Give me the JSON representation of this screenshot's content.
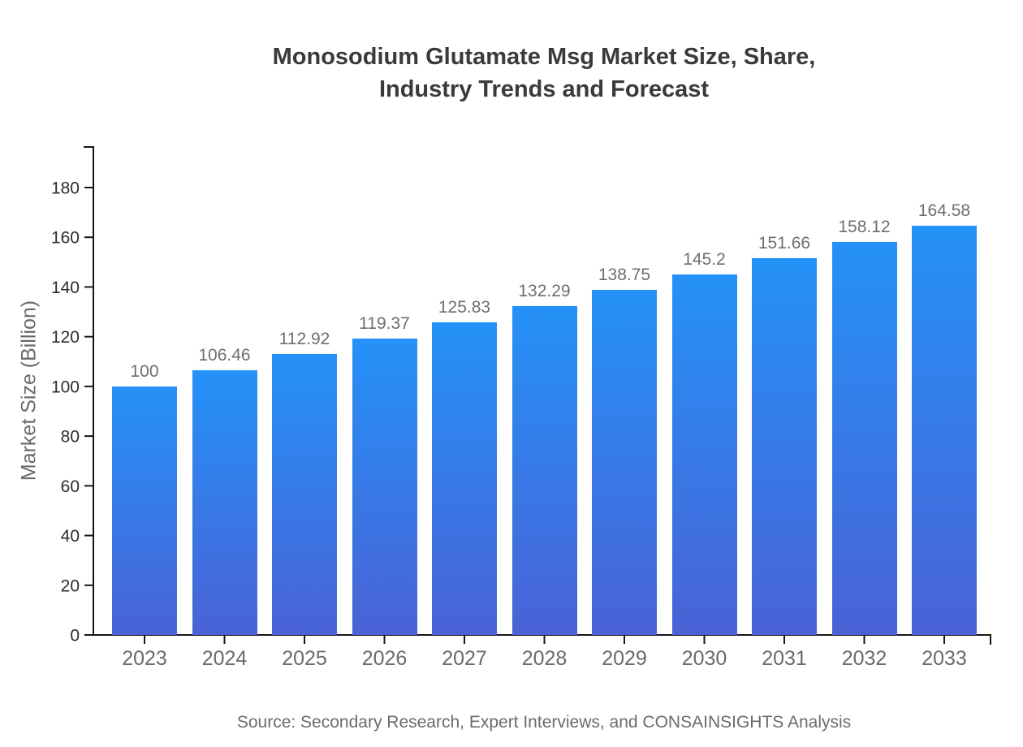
{
  "title": {
    "line1": "Monosodium Glutamate Msg Market Size, Share,",
    "line2": "Industry Trends and Forecast"
  },
  "source": "Source: Secondary Research, Expert Interviews, and CONSAINSIGHTS Analysis",
  "chart_data": {
    "type": "bar",
    "title": "Monosodium Glutamate Msg Market Size, Share, Industry Trends and Forecast",
    "categories": [
      "2023",
      "2024",
      "2025",
      "2026",
      "2027",
      "2028",
      "2029",
      "2030",
      "2031",
      "2032",
      "2033"
    ],
    "values": [
      100,
      106.46,
      112.92,
      119.37,
      125.83,
      132.29,
      138.75,
      145.2,
      151.66,
      158.12,
      164.58
    ],
    "value_labels": [
      "100",
      "106.46",
      "112.92",
      "119.37",
      "125.83",
      "132.29",
      "138.75",
      "145.2",
      "151.66",
      "158.12",
      "164.58"
    ],
    "xlabel": "",
    "ylabel": "Market Size (Billion)",
    "ylim": [
      0,
      196
    ],
    "yticks": [
      0,
      20,
      40,
      60,
      80,
      100,
      120,
      140,
      160,
      180
    ],
    "grid": false,
    "legend": "none",
    "colors": {
      "bar_gradient_top": "#2492f8",
      "bar_gradient_bottom": "#4a62d6",
      "axis": "#161616",
      "ytick_label": "#2e2e2e",
      "xtick_label": "#6a6a6a",
      "value_label": "#6e6e6e",
      "title": "#3a3a3a",
      "source": "#6b6b6b"
    }
  }
}
